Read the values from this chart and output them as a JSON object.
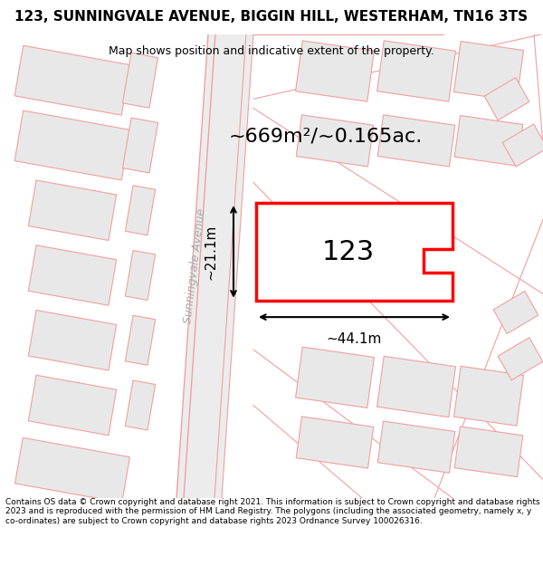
{
  "title": "123, SUNNINGVALE AVENUE, BIGGIN HILL, WESTERHAM, TN16 3TS",
  "subtitle": "Map shows position and indicative extent of the property.",
  "footer": "Contains OS data © Crown copyright and database right 2021. This information is subject to Crown copyright and database rights 2023 and is reproduced with the permission of HM Land Registry. The polygons (including the associated geometry, namely x, y co-ordinates) are subject to Crown copyright and database rights 2023 Ordnance Survey 100026316.",
  "area_label": "~669m²/~0.165ac.",
  "width_label": "~44.1m",
  "height_label": "~21.1m",
  "plot_number": "123",
  "bg_color": "#ffffff",
  "map_bg": "#f5f5f5",
  "road_color": "#e8e8e8",
  "building_color": "#e0e0e0",
  "line_color": "#e07070",
  "highlight_color": "#ff0000",
  "road_line_color": "#f0a0a0"
}
